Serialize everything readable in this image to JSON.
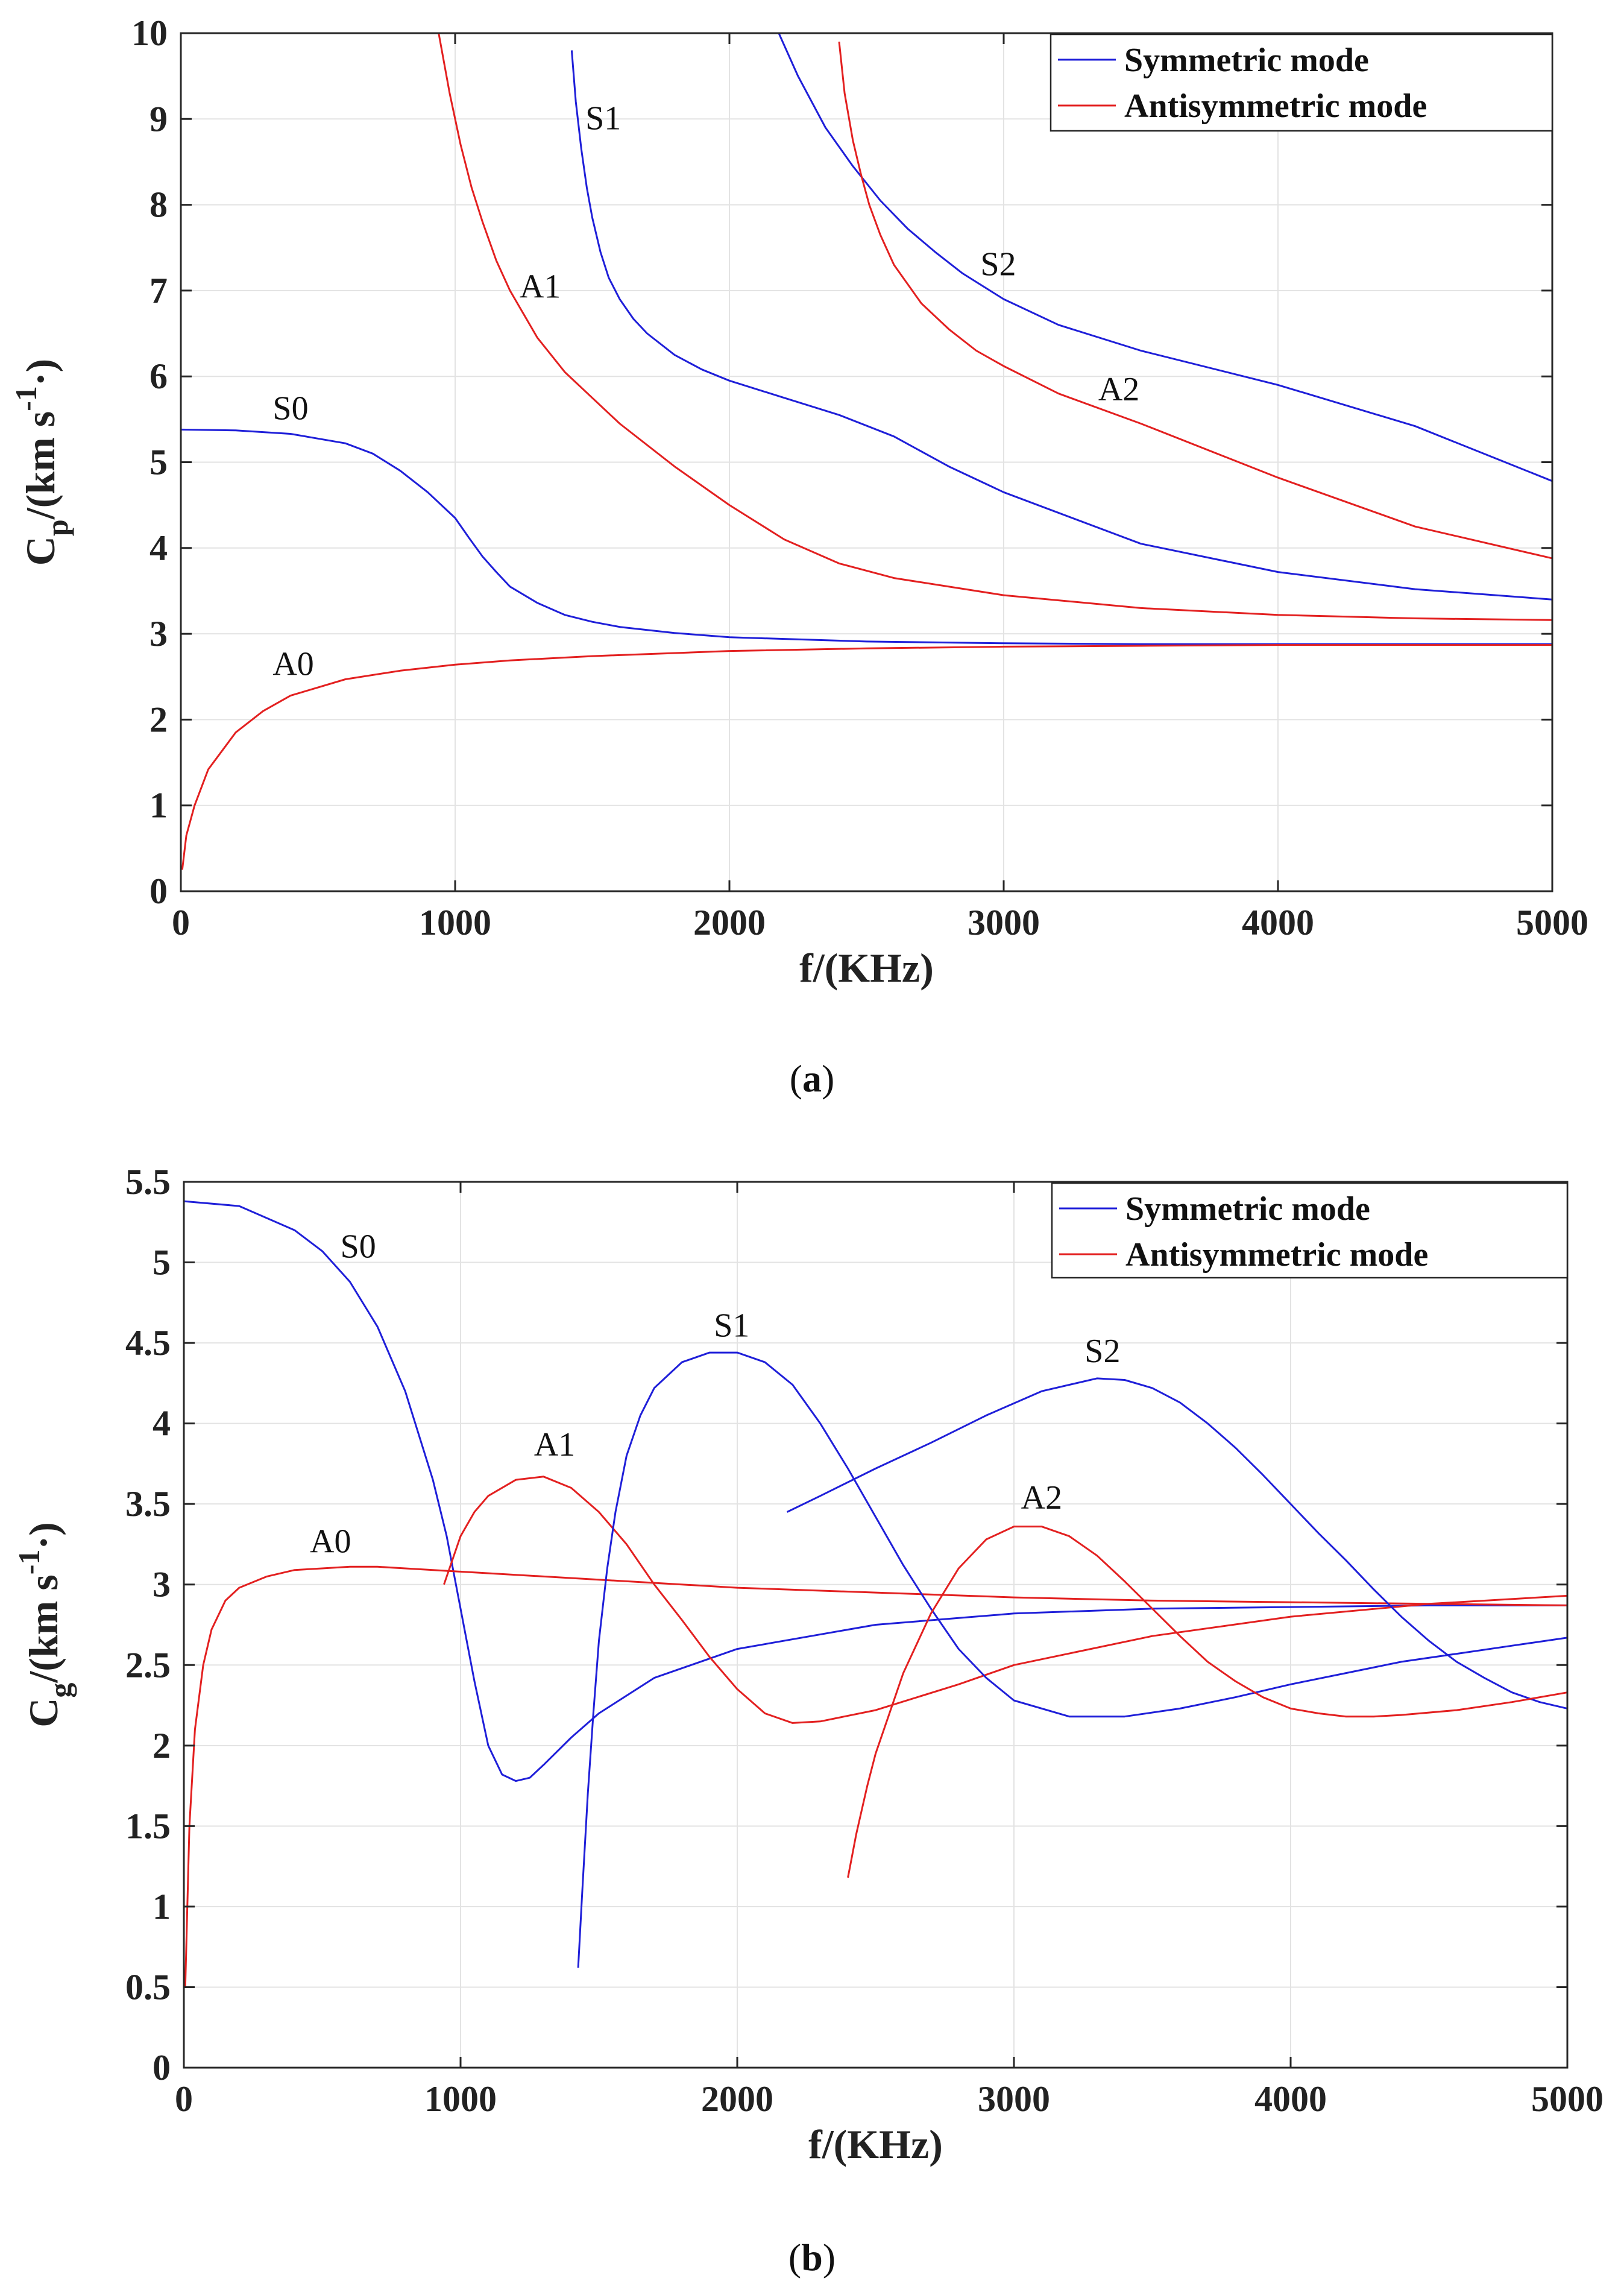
{
  "chart_data": [
    {
      "type": "line",
      "id": "a",
      "caption_letter": "a",
      "xlabel": "f/(KHz)",
      "ylabel": {
        "main": "C",
        "sub": "p",
        "units": "/(km s",
        "sup": "-1",
        "tail": "·)"
      },
      "xlim": [
        0,
        5000
      ],
      "ylim": [
        0,
        10
      ],
      "xticks": [
        0,
        1000,
        2000,
        3000,
        4000,
        5000
      ],
      "yticks": [
        0,
        1,
        2,
        3,
        4,
        5,
        6,
        7,
        8,
        9,
        10
      ],
      "xtick_labels": [
        "0",
        "1000",
        "2000",
        "3000",
        "4000",
        "5000"
      ],
      "ytick_labels": [
        "0",
        "1",
        "2",
        "3",
        "4",
        "5",
        "6",
        "7",
        "8",
        "9",
        "10"
      ],
      "grid": true,
      "legend_position": "top-right",
      "legend": [
        {
          "label": "Symmetric mode",
          "color": "#1f1fd9"
        },
        {
          "label": "Antisymmetric mode",
          "color": "#e32020"
        }
      ],
      "series": [
        {
          "name": "S0",
          "mode": "symmetric",
          "color": "#1f1fd9",
          "x": [
            0,
            200,
            400,
            600,
            700,
            800,
            900,
            1000,
            1050,
            1100,
            1150,
            1200,
            1300,
            1400,
            1500,
            1600,
            1800,
            2000,
            2500,
            3000,
            3500,
            4000,
            4500,
            5000
          ],
          "y": [
            5.38,
            5.37,
            5.33,
            5.22,
            5.1,
            4.9,
            4.65,
            4.35,
            4.12,
            3.9,
            3.72,
            3.55,
            3.36,
            3.22,
            3.14,
            3.08,
            3.01,
            2.96,
            2.91,
            2.89,
            2.88,
            2.88,
            2.88,
            2.88
          ]
        },
        {
          "name": "A0",
          "mode": "antisymmetric",
          "color": "#e32020",
          "x": [
            5,
            20,
            50,
            100,
            200,
            300,
            400,
            600,
            800,
            1000,
            1200,
            1500,
            2000,
            2500,
            3000,
            3500,
            4000,
            4500,
            5000
          ],
          "y": [
            0.25,
            0.65,
            1.0,
            1.42,
            1.85,
            2.1,
            2.28,
            2.47,
            2.57,
            2.64,
            2.69,
            2.74,
            2.8,
            2.83,
            2.85,
            2.86,
            2.87,
            2.87,
            2.87
          ]
        },
        {
          "name": "A1",
          "mode": "antisymmetric",
          "color": "#e32020",
          "x": [
            940,
            980,
            1020,
            1060,
            1100,
            1150,
            1200,
            1300,
            1400,
            1500,
            1600,
            1800,
            2000,
            2200,
            2400,
            2600,
            3000,
            3500,
            4000,
            4500,
            5000
          ],
          "y": [
            10.0,
            9.3,
            8.7,
            8.2,
            7.8,
            7.35,
            7.0,
            6.45,
            6.05,
            5.75,
            5.45,
            4.95,
            4.5,
            4.1,
            3.82,
            3.65,
            3.45,
            3.3,
            3.22,
            3.18,
            3.16
          ]
        },
        {
          "name": "S1",
          "mode": "symmetric",
          "color": "#1f1fd9",
          "x": [
            1425,
            1440,
            1460,
            1480,
            1500,
            1530,
            1560,
            1600,
            1650,
            1700,
            1800,
            1900,
            2000,
            2200,
            2400,
            2600,
            2800,
            3000,
            3500,
            4000,
            4500,
            5000
          ],
          "y": [
            9.8,
            9.2,
            8.65,
            8.2,
            7.85,
            7.45,
            7.15,
            6.9,
            6.67,
            6.5,
            6.25,
            6.08,
            5.95,
            5.75,
            5.55,
            5.3,
            4.95,
            4.65,
            4.05,
            3.72,
            3.52,
            3.4
          ]
        },
        {
          "name": "S2",
          "mode": "symmetric",
          "color": "#1f1fd9",
          "x": [
            2180,
            2250,
            2350,
            2450,
            2550,
            2650,
            2750,
            2850,
            3000,
            3200,
            3500,
            4000,
            4500,
            5000
          ],
          "y": [
            10.0,
            9.5,
            8.9,
            8.45,
            8.05,
            7.72,
            7.45,
            7.2,
            6.9,
            6.6,
            6.3,
            5.9,
            5.42,
            4.78
          ]
        },
        {
          "name": "A2",
          "mode": "antisymmetric",
          "color": "#e32020",
          "x": [
            2400,
            2420,
            2450,
            2480,
            2510,
            2550,
            2600,
            2700,
            2800,
            2900,
            3000,
            3200,
            3500,
            4000,
            4500,
            5000
          ],
          "y": [
            9.9,
            9.3,
            8.75,
            8.35,
            8.0,
            7.65,
            7.3,
            6.85,
            6.55,
            6.3,
            6.12,
            5.8,
            5.45,
            4.82,
            4.25,
            3.88
          ]
        }
      ],
      "annotations": [
        {
          "text": "S0",
          "x": 400,
          "y": 5.5
        },
        {
          "text": "A0",
          "x": 410,
          "y": 2.52
        },
        {
          "text": "A1",
          "x": 1310,
          "y": 6.92
        },
        {
          "text": "S1",
          "x": 1540,
          "y": 8.88
        },
        {
          "text": "S2",
          "x": 2980,
          "y": 7.18
        },
        {
          "text": "A2",
          "x": 3420,
          "y": 5.72
        }
      ]
    },
    {
      "type": "line",
      "id": "b",
      "caption_letter": "b",
      "xlabel": "f/(KHz)",
      "ylabel": {
        "main": "C",
        "sub": "g",
        "units": "/(km s",
        "sup": "-1",
        "tail": "·)"
      },
      "xlim": [
        0,
        5000
      ],
      "ylim": [
        0,
        5.5
      ],
      "xticks": [
        0,
        1000,
        2000,
        3000,
        4000,
        5000
      ],
      "yticks": [
        0,
        0.5,
        1,
        1.5,
        2,
        2.5,
        3,
        3.5,
        4,
        4.5,
        5,
        5.5
      ],
      "xtick_labels": [
        "0",
        "1000",
        "2000",
        "3000",
        "4000",
        "5000"
      ],
      "ytick_labels": [
        "0",
        "0.5",
        "1",
        "1.5",
        "2",
        "2.5",
        "3",
        "3.5",
        "4",
        "4.5",
        "5",
        "5.5"
      ],
      "grid": true,
      "legend_position": "top-right",
      "legend": [
        {
          "label": "Symmetric mode",
          "color": "#1f1fd9"
        },
        {
          "label": "Antisymmetric mode",
          "color": "#e32020"
        }
      ],
      "series": [
        {
          "name": "S0",
          "mode": "symmetric",
          "color": "#1f1fd9",
          "x": [
            0,
            200,
            400,
            500,
            600,
            700,
            800,
            900,
            950,
            1000,
            1050,
            1100,
            1150,
            1200,
            1250,
            1300,
            1400,
            1500,
            1700,
            2000,
            2500,
            3000,
            3500,
            4000,
            4500,
            5000
          ],
          "y": [
            5.38,
            5.35,
            5.2,
            5.07,
            4.88,
            4.6,
            4.2,
            3.65,
            3.3,
            2.85,
            2.4,
            2.0,
            1.82,
            1.78,
            1.8,
            1.88,
            2.05,
            2.2,
            2.42,
            2.6,
            2.75,
            2.82,
            2.85,
            2.86,
            2.87,
            2.87
          ]
        },
        {
          "name": "A0",
          "mode": "antisymmetric",
          "color": "#e32020",
          "x": [
            5,
            20,
            40,
            70,
            100,
            150,
            200,
            300,
            400,
            500,
            600,
            700,
            800,
            1000,
            1500,
            2000,
            2500,
            3000,
            3500,
            4000,
            4500,
            5000
          ],
          "y": [
            0.5,
            1.5,
            2.1,
            2.5,
            2.72,
            2.9,
            2.98,
            3.05,
            3.09,
            3.1,
            3.11,
            3.11,
            3.1,
            3.08,
            3.03,
            2.98,
            2.95,
            2.92,
            2.9,
            2.89,
            2.88,
            2.87
          ]
        },
        {
          "name": "A1",
          "mode": "antisymmetric",
          "color": "#e32020",
          "x": [
            940,
            1000,
            1050,
            1100,
            1200,
            1300,
            1400,
            1500,
            1600,
            1700,
            1800,
            1900,
            2000,
            2100,
            2200,
            2300,
            2500,
            2800,
            3000,
            3500,
            4000,
            4500,
            5000
          ],
          "y": [
            3.0,
            3.3,
            3.45,
            3.55,
            3.65,
            3.67,
            3.6,
            3.45,
            3.25,
            3.0,
            2.78,
            2.55,
            2.35,
            2.2,
            2.14,
            2.15,
            2.22,
            2.38,
            2.5,
            2.68,
            2.8,
            2.88,
            2.93
          ]
        },
        {
          "name": "S1",
          "mode": "symmetric",
          "color": "#1f1fd9",
          "x": [
            1425,
            1440,
            1460,
            1480,
            1500,
            1530,
            1560,
            1600,
            1650,
            1700,
            1800,
            1900,
            2000,
            2100,
            2200,
            2300,
            2400,
            2500,
            2600,
            2700,
            2800,
            2900,
            3000,
            3200,
            3400,
            3600,
            3800,
            4000,
            4200,
            4400,
            4600,
            4800,
            5000
          ],
          "y": [
            0.62,
            1.1,
            1.7,
            2.2,
            2.65,
            3.1,
            3.45,
            3.8,
            4.05,
            4.22,
            4.38,
            4.44,
            4.44,
            4.38,
            4.24,
            4.0,
            3.72,
            3.42,
            3.12,
            2.85,
            2.6,
            2.42,
            2.28,
            2.18,
            2.18,
            2.23,
            2.3,
            2.38,
            2.45,
            2.52,
            2.57,
            2.62,
            2.67
          ]
        },
        {
          "name": "S2",
          "mode": "symmetric",
          "color": "#1f1fd9",
          "x": [
            2180,
            2300,
            2500,
            2700,
            2900,
            3100,
            3300,
            3400,
            3500,
            3600,
            3700,
            3800,
            3900,
            4000,
            4100,
            4200,
            4300,
            4400,
            4500,
            4600,
            4700,
            4800,
            4900,
            5000
          ],
          "y": [
            3.45,
            3.55,
            3.72,
            3.88,
            4.05,
            4.2,
            4.28,
            4.27,
            4.22,
            4.13,
            4.0,
            3.85,
            3.68,
            3.5,
            3.32,
            3.15,
            2.97,
            2.8,
            2.65,
            2.52,
            2.42,
            2.33,
            2.27,
            2.23
          ]
        },
        {
          "name": "A2",
          "mode": "antisymmetric",
          "color": "#e32020",
          "x": [
            2400,
            2430,
            2470,
            2500,
            2550,
            2600,
            2700,
            2800,
            2900,
            3000,
            3100,
            3200,
            3300,
            3400,
            3500,
            3600,
            3700,
            3800,
            3900,
            4000,
            4100,
            4200,
            4300,
            4400,
            4600,
            4800,
            5000
          ],
          "y": [
            1.18,
            1.45,
            1.75,
            1.95,
            2.2,
            2.45,
            2.82,
            3.1,
            3.28,
            3.36,
            3.36,
            3.3,
            3.18,
            3.02,
            2.85,
            2.68,
            2.52,
            2.4,
            2.3,
            2.23,
            2.2,
            2.18,
            2.18,
            2.19,
            2.22,
            2.27,
            2.33
          ]
        }
      ],
      "annotations": [
        {
          "text": "S0",
          "x": 630,
          "y": 5.03
        },
        {
          "text": "A0",
          "x": 530,
          "y": 3.2
        },
        {
          "text": "A1",
          "x": 1340,
          "y": 3.8
        },
        {
          "text": "S1",
          "x": 1980,
          "y": 4.54
        },
        {
          "text": "S2",
          "x": 3320,
          "y": 4.38
        },
        {
          "text": "A2",
          "x": 3100,
          "y": 3.47
        }
      ]
    }
  ]
}
